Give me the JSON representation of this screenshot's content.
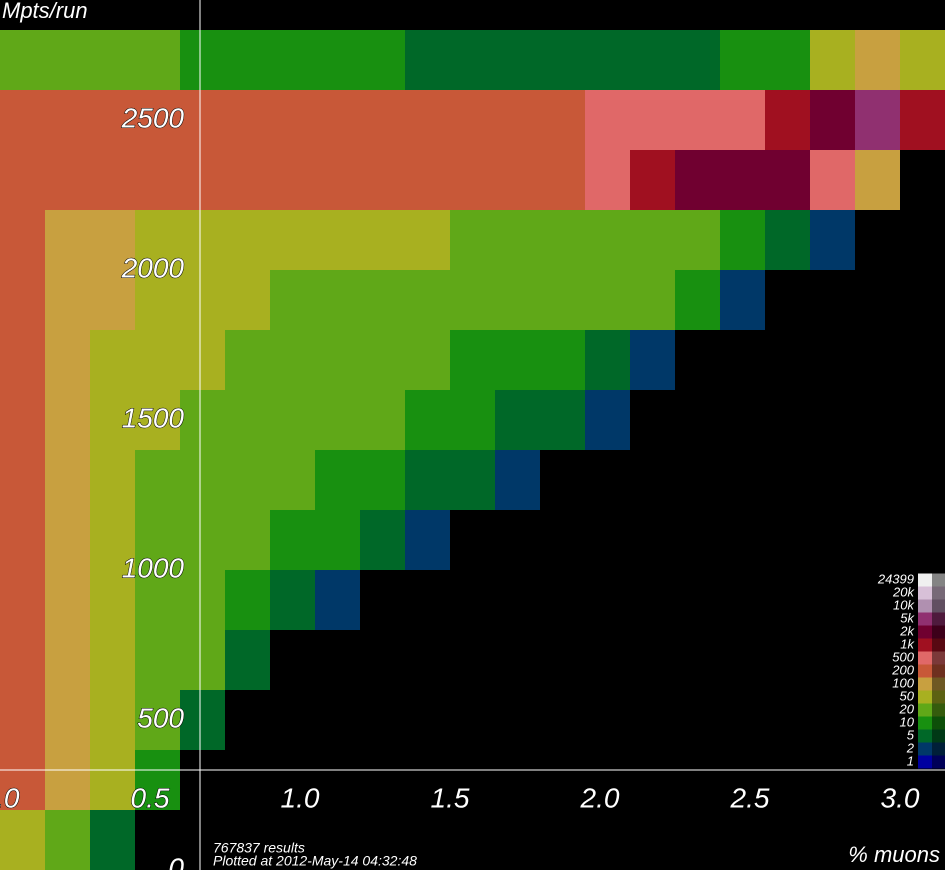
{
  "chart_data": {
    "type": "heatmap",
    "y_label": "Mpts/run",
    "x_label": "% muons",
    "notes": [
      "767837 results",
      "Plotted at 2012-May-14 04:32:48"
    ],
    "xlim": [
      0,
      3.15
    ],
    "ylim": [
      0,
      2900
    ],
    "xticks": [
      {
        "value": 0,
        "label": "0.0"
      },
      0.5,
      {
        "value": 1,
        "label": "1.0"
      },
      1.5,
      {
        "value": 2,
        "label": "2.0"
      },
      2.5,
      {
        "value": 3,
        "label": "3.0"
      }
    ],
    "yticks": [
      0,
      500,
      1000,
      1500,
      2000,
      2500
    ],
    "x_bins": [
      0,
      0.15,
      0.3,
      0.45,
      0.6,
      0.75,
      0.9,
      1.05,
      1.2,
      1.35,
      1.5,
      1.65,
      1.8,
      1.95,
      2.1,
      2.25,
      2.4,
      2.55,
      2.7,
      2.85,
      3.0,
      3.15
    ],
    "y_bins": [
      0,
      200,
      400,
      600,
      800,
      1000,
      1200,
      1400,
      1600,
      1800,
      2000,
      2200,
      2400,
      2600,
      2800
    ],
    "values": [
      [
        50,
        20,
        5,
        0,
        0,
        0,
        0,
        0,
        0,
        0,
        0,
        0,
        0,
        0,
        0,
        0,
        0,
        0,
        0,
        0,
        0
      ],
      [
        200,
        100,
        50,
        10,
        0,
        0,
        0,
        0,
        0,
        0,
        0,
        0,
        0,
        0,
        0,
        0,
        0,
        0,
        0,
        0,
        0
      ],
      [
        300,
        100,
        50,
        20,
        5,
        0,
        0,
        0,
        0,
        0,
        0,
        0,
        0,
        0,
        0,
        0,
        0,
        0,
        0,
        0,
        0
      ],
      [
        300,
        100,
        50,
        30,
        20,
        5,
        0,
        0,
        0,
        0,
        0,
        0,
        0,
        0,
        0,
        0,
        0,
        0,
        0,
        0,
        0
      ],
      [
        300,
        100,
        60,
        30,
        20,
        10,
        5,
        2,
        0,
        0,
        0,
        0,
        0,
        0,
        0,
        0,
        0,
        0,
        0,
        0,
        0
      ],
      [
        300,
        100,
        60,
        40,
        30,
        20,
        15,
        10,
        5,
        2,
        0,
        0,
        0,
        0,
        0,
        0,
        0,
        0,
        0,
        0,
        0
      ],
      [
        300,
        100,
        60,
        40,
        30,
        25,
        20,
        15,
        10,
        8,
        5,
        3,
        0,
        0,
        0,
        0,
        0,
        0,
        0,
        0,
        0
      ],
      [
        400,
        150,
        80,
        50,
        40,
        30,
        25,
        20,
        20,
        15,
        10,
        8,
        5,
        2,
        0,
        0,
        0,
        0,
        0,
        0,
        0
      ],
      [
        400,
        150,
        80,
        60,
        50,
        40,
        30,
        25,
        20,
        20,
        15,
        12,
        10,
        8,
        3,
        0,
        0,
        0,
        0,
        0,
        0
      ],
      [
        300,
        150,
        100,
        80,
        60,
        50,
        40,
        40,
        40,
        40,
        40,
        40,
        30,
        30,
        20,
        10,
        3,
        0,
        0,
        0,
        0
      ],
      [
        200,
        120,
        100,
        80,
        70,
        60,
        50,
        50,
        50,
        50,
        40,
        40,
        40,
        40,
        30,
        20,
        15,
        8,
        3,
        0,
        0
      ],
      [
        300,
        250,
        250,
        250,
        250,
        250,
        250,
        250,
        250,
        250,
        300,
        300,
        400,
        500,
        1000,
        2000,
        3000,
        2000,
        500,
        100,
        0
      ],
      [
        400,
        300,
        300,
        300,
        300,
        300,
        300,
        300,
        300,
        300,
        300,
        300,
        400,
        500,
        500,
        600,
        800,
        1000,
        2000,
        5000,
        1000
      ],
      [
        30,
        20,
        20,
        20,
        15,
        15,
        10,
        10,
        10,
        8,
        8,
        8,
        8,
        8,
        8,
        8,
        10,
        10,
        50,
        100,
        50
      ]
    ],
    "colorbar": {
      "ticks": [
        24399,
        {
          "value": 20000,
          "label": "20k"
        },
        {
          "value": 10000,
          "label": "10k"
        },
        {
          "value": 5000,
          "label": "5k"
        },
        {
          "value": 2000,
          "label": "2k"
        },
        {
          "value": 1000,
          "label": "1k"
        },
        500,
        200,
        100,
        50,
        20,
        10,
        5,
        2,
        1
      ],
      "colors": [
        "#f0f0f0",
        "#d8c0d8",
        "#b090b0",
        "#903070",
        "#700030",
        "#a01020",
        "#e06868",
        "#c85838",
        "#c8a040",
        "#a8b020",
        "#60a818",
        "#189010",
        "#006828",
        "#003868",
        "#0000a0"
      ]
    }
  }
}
